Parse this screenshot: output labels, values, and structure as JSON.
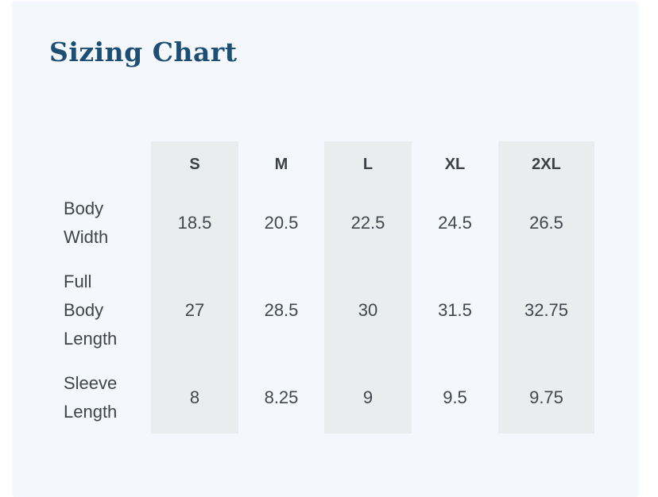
{
  "title": {
    "text": "Sizing Chart",
    "color": "#1d4e74"
  },
  "panel": {
    "background": "#f4f7fb",
    "page_background": "#ffffff",
    "shade_color": "#eaedee"
  },
  "table": {
    "columns": [
      "S",
      "M",
      "L",
      "XL",
      "2XL"
    ],
    "shaded_column_indexes": [
      0,
      2,
      4
    ],
    "rows": [
      {
        "label": "Body\nWidth",
        "values": [
          "18.5",
          "20.5",
          "22.5",
          "24.5",
          "26.5"
        ]
      },
      {
        "label": "Full\nBody\nLength",
        "values": [
          "27",
          "28.5",
          "30",
          "31.5",
          "32.75"
        ]
      },
      {
        "label": "Sleeve\nLength",
        "values": [
          "8",
          "8.25",
          "9",
          "9.5",
          "9.75"
        ]
      }
    ]
  }
}
